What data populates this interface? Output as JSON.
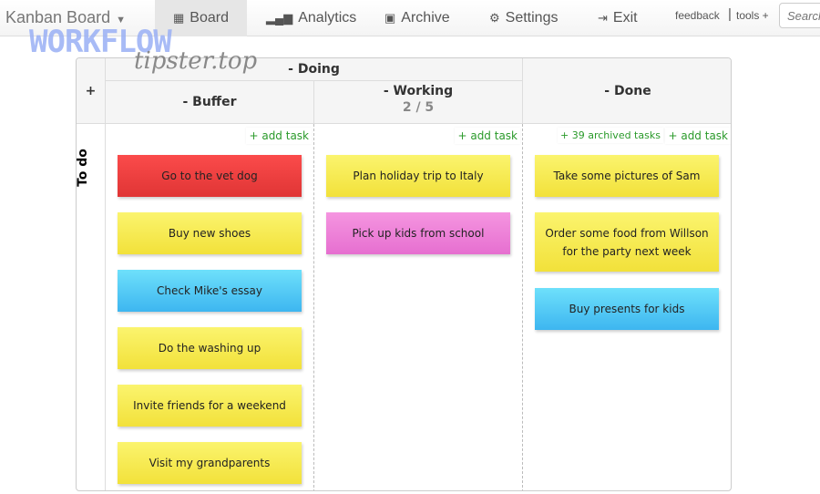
{
  "nav": {
    "brand": "Kanban Board",
    "items": [
      {
        "label": "Board",
        "icon": "board-icon"
      },
      {
        "label": "Analytics",
        "icon": "signal-icon"
      },
      {
        "label": "Archive",
        "icon": "archive-icon"
      },
      {
        "label": "Settings",
        "icon": "gear-icon"
      },
      {
        "label": "Exit",
        "icon": "exit-icon"
      }
    ],
    "feedback": "feedback",
    "separator": "|",
    "tools": "tools +",
    "search_placeholder": "Search"
  },
  "watermark": {
    "line1": "WORKFLOW",
    "line2": "tipster.top"
  },
  "board": {
    "add_lane": "+",
    "group": "- Doing",
    "lane": "To do",
    "add_task": "+ add task",
    "archived": "+ 39 archived tasks",
    "columns": [
      {
        "title": "- Buffer"
      },
      {
        "title": "- Working",
        "wip": "2 / 5"
      },
      {
        "title": "- Done"
      }
    ],
    "cards": {
      "buffer": [
        {
          "text": "Go to the vet dog",
          "color": "#f04040"
        },
        {
          "text": "Buy new shoes",
          "color": "#f7ea50"
        },
        {
          "text": "Check Mike's essay",
          "color": "#4fcaf5"
        },
        {
          "text": "Do the washing up",
          "color": "#f7ea50"
        },
        {
          "text": "Invite friends for a weekend",
          "color": "#f7ea50"
        },
        {
          "text": "Visit my grandparents",
          "color": "#f7ea50"
        }
      ],
      "working": [
        {
          "text": "Plan holiday trip to Italy",
          "color": "#f7ea50"
        },
        {
          "text": "Pick up kids from school",
          "color": "#ee80d8"
        }
      ],
      "done": [
        {
          "text": "Take some pictures of Sam",
          "color": "#f7ea50"
        },
        {
          "text": "Order some food from Willson for the party next week",
          "color": "#f7ea50"
        },
        {
          "text": "Buy presents for kids",
          "color": "#4fcaf5"
        }
      ]
    }
  }
}
